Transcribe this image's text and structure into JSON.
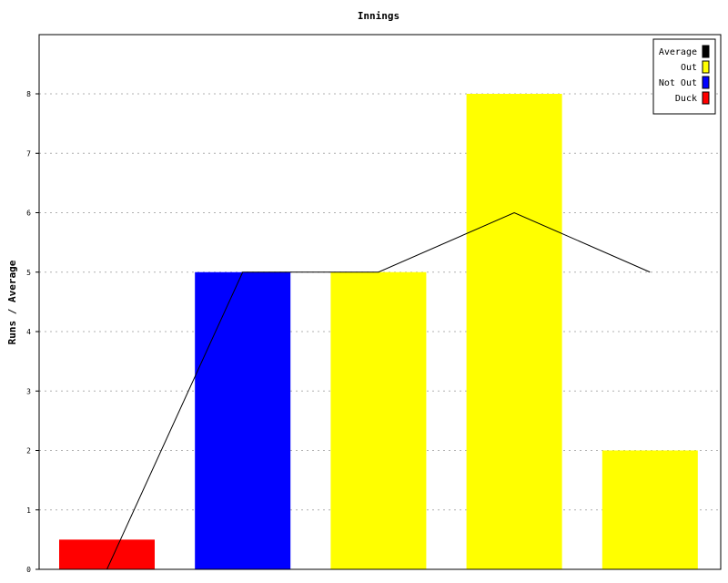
{
  "chart_data": {
    "type": "bar",
    "title": "Innings",
    "xlabel": "",
    "ylabel": "Runs / Average",
    "ylim": [
      0,
      9
    ],
    "yticks": [
      0,
      1,
      2,
      3,
      4,
      5,
      6,
      7,
      8
    ],
    "grid": true,
    "legend_placement": "top-right",
    "categories": [
      "",
      "",
      "",
      "",
      ""
    ],
    "bars": [
      {
        "value": 0.5,
        "type": "Duck"
      },
      {
        "value": 5,
        "type": "Not Out"
      },
      {
        "value": 5,
        "type": "Out"
      },
      {
        "value": 8,
        "type": "Out"
      },
      {
        "value": 2,
        "type": "Out"
      }
    ],
    "average_line": {
      "values": [
        0,
        5,
        5,
        6,
        5
      ]
    },
    "legend": [
      {
        "label": "Average",
        "color": "#000000"
      },
      {
        "label": "Out",
        "color": "#ffff00"
      },
      {
        "label": "Not Out",
        "color": "#0000ff"
      },
      {
        "label": "Duck",
        "color": "#ff0000"
      }
    ],
    "colors": {
      "Duck": "#ff0000",
      "Not Out": "#0000ff",
      "Out": "#ffff00",
      "Average": "#000000"
    }
  }
}
